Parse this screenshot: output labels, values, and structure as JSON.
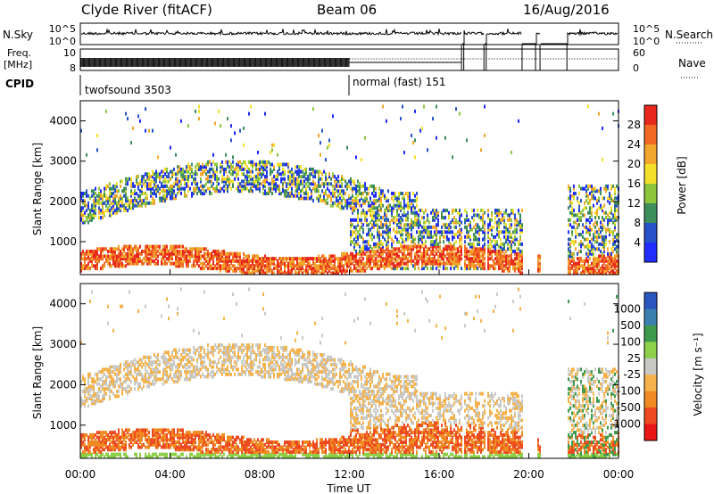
{
  "header": {
    "station": "Clyde River (fitACF)",
    "beam": "Beam 06",
    "date": "16/Aug/2016"
  },
  "strips": {
    "nsky_label": "N.Sky",
    "nsearch_label": "N.Search",
    "noise_ticks_left": [
      "10^5",
      "10^0"
    ],
    "noise_ticks_right": [
      "10^5",
      "10^0"
    ],
    "freq_label_1": "Freq.",
    "freq_label_2": "[MHz]",
    "freq_ticks": [
      "10",
      "8"
    ],
    "nave_label": "Nave",
    "nave_ticks": [
      "60",
      "0"
    ],
    "cpid_label": "CPID",
    "cpid_segments": [
      {
        "name": "twofsound",
        "id": "3503",
        "start_hour": 0,
        "end_hour": 12
      },
      {
        "name": "normal (fast)",
        "id": "151",
        "start_hour": 12,
        "end_hour": 24
      }
    ],
    "gaps_hours": [
      [
        17.0,
        17.1
      ],
      [
        18.0,
        18.1
      ],
      [
        19.7,
        20.3
      ],
      [
        20.5,
        21.7
      ]
    ]
  },
  "chart_data": [
    {
      "type": "heatmap",
      "panel": "power",
      "ylabel": "Slant Range [km]",
      "ylim": [
        180,
        4500
      ],
      "yticks": [
        "1000",
        "2000",
        "3000",
        "4000"
      ],
      "colorbar": {
        "label": "Power [dB]",
        "tick_labels": [
          "4",
          "8",
          "12",
          "16",
          "20",
          "24",
          "28"
        ],
        "colors": [
          "#1f2bff",
          "#2552c6",
          "#3e8e5c",
          "#8cc63c",
          "#f2e02b",
          "#f2a62c",
          "#f06a26",
          "#e8281c"
        ]
      }
    },
    {
      "type": "heatmap",
      "panel": "velocity",
      "ylabel": "Slant Range [km]",
      "ylim": [
        180,
        4500
      ],
      "yticks": [
        "1000",
        "2000",
        "3000",
        "4000"
      ],
      "colorbar": {
        "label": "Velocity [m s⁻¹]",
        "tick_labels": [
          "1000",
          "500",
          "100",
          "25",
          "-25",
          "-100",
          "-500",
          "-1000"
        ],
        "colors": [
          "#2b56c0",
          "#3a7fae",
          "#3e9a4e",
          "#8dd04a",
          "#c8c8c4",
          "#f6b24a",
          "#f08a22",
          "#ee4a22",
          "#e81616"
        ]
      }
    }
  ],
  "xaxis": {
    "label": "Time UT",
    "ticks": [
      "00:00",
      "04:00",
      "08:00",
      "12:00",
      "16:00",
      "20:00",
      "00:00"
    ],
    "range_hours": [
      0,
      24
    ]
  }
}
